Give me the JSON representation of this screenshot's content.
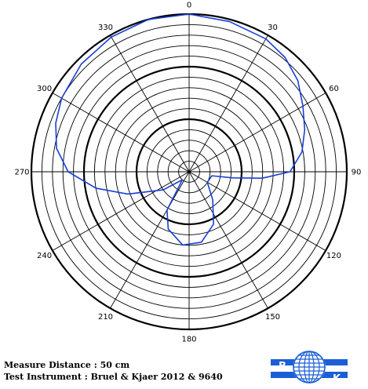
{
  "chart_data": {
    "type": "polar-line",
    "angle_unit": "degrees",
    "angle_direction": "clockwise-from-top",
    "angle_tick_labels": [
      "0",
      "30",
      "60",
      "90",
      "120",
      "150",
      "180",
      "210",
      "240",
      "270",
      "300",
      "330"
    ],
    "radial_rings": 15,
    "bold_rings": [
      5,
      10,
      15
    ],
    "grid": true,
    "series": [
      {
        "color": "#1a3fd6",
        "points": [
          {
            "angle": 0,
            "r": 15.0
          },
          {
            "angle": 15,
            "r": 14.8
          },
          {
            "angle": 30,
            "r": 14.6
          },
          {
            "angle": 40,
            "r": 14.2
          },
          {
            "angle": 50,
            "r": 13.5
          },
          {
            "angle": 60,
            "r": 12.5
          },
          {
            "angle": 70,
            "r": 11.7
          },
          {
            "angle": 80,
            "r": 10.9
          },
          {
            "angle": 90,
            "r": 9.6
          },
          {
            "angle": 95,
            "r": 7.0
          },
          {
            "angle": 98,
            "r": 4.2
          },
          {
            "angle": 100,
            "r": 2.2
          },
          {
            "angle": 120,
            "r": 2.0
          },
          {
            "angle": 140,
            "r": 3.5
          },
          {
            "angle": 155,
            "r": 5.5
          },
          {
            "angle": 170,
            "r": 6.8
          },
          {
            "angle": 185,
            "r": 7.0
          },
          {
            "angle": 200,
            "r": 5.8
          },
          {
            "angle": 210,
            "r": 4.2
          },
          {
            "angle": 220,
            "r": 1.0
          },
          {
            "angle": 235,
            "r": 3.0
          },
          {
            "angle": 250,
            "r": 6.2
          },
          {
            "angle": 260,
            "r": 9.0
          },
          {
            "angle": 270,
            "r": 11.5
          },
          {
            "angle": 280,
            "r": 12.8
          },
          {
            "angle": 290,
            "r": 13.5
          },
          {
            "angle": 300,
            "r": 14.0
          },
          {
            "angle": 315,
            "r": 14.5
          },
          {
            "angle": 330,
            "r": 14.8
          },
          {
            "angle": 345,
            "r": 15.0
          },
          {
            "angle": 360,
            "r": 15.0
          }
        ]
      }
    ]
  },
  "captions": {
    "measure_distance": "Measure Distance : 50 cm",
    "test_instrument": "Test Instrument : Bruel & Kjaer 2012 & 9640"
  },
  "logo": {
    "left_letter": "B",
    "right_letter": "K",
    "brand_color": "#1a5fd6"
  }
}
